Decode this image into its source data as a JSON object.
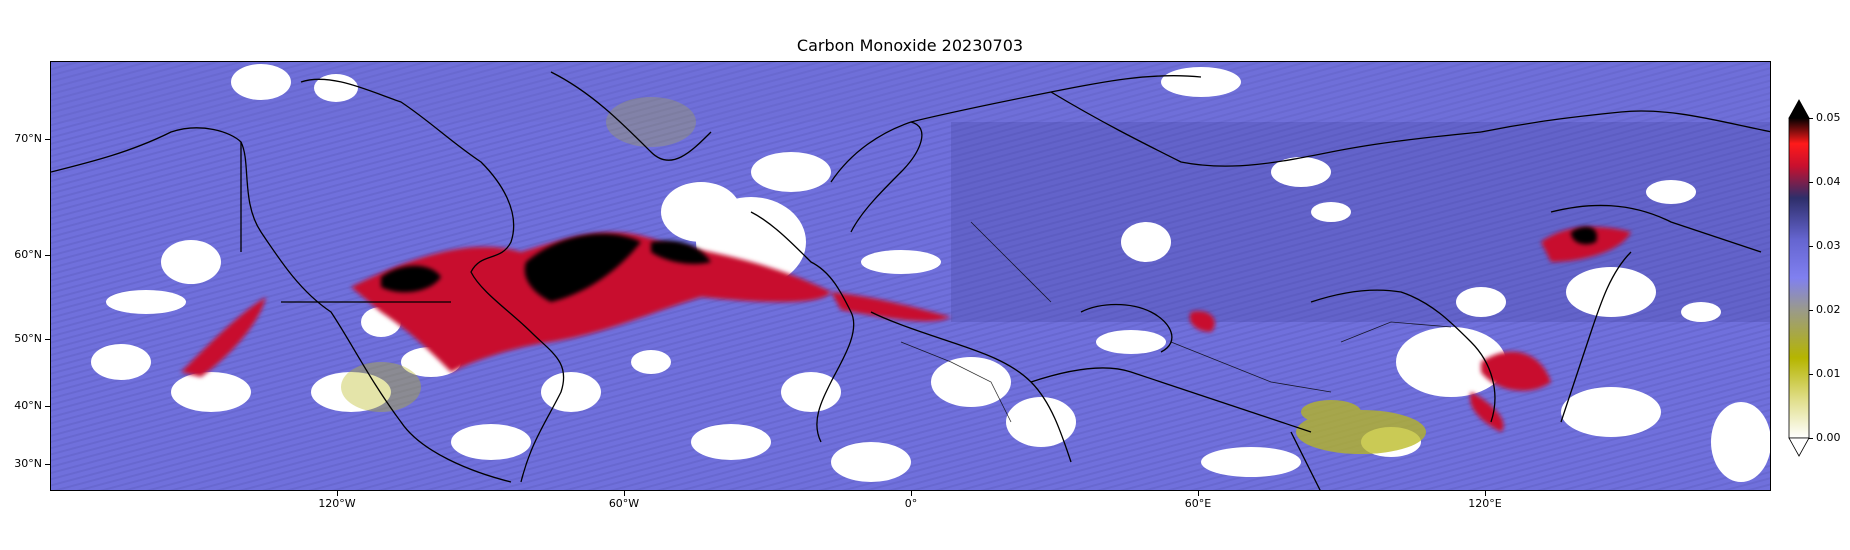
{
  "title": "Carbon Monoxide 20230703",
  "y_ticks": [
    "70°N",
    "60°N",
    "50°N",
    "40°N",
    "30°N"
  ],
  "x_ticks": [
    "120°W",
    "60°W",
    "0°",
    "60°E",
    "120°E"
  ],
  "colorbar": {
    "ticks": [
      "0.00",
      "0.01",
      "0.02",
      "0.03",
      "0.04",
      "0.05"
    ],
    "min": 0.0,
    "max": 0.05,
    "colors": [
      "#ffffff",
      "#e6e28a",
      "#b5b500",
      "#8d8d72",
      "#7f7fff",
      "#3b3b8c",
      "#c0102e",
      "#ff1a1a",
      "#000000"
    ],
    "extend": "max"
  },
  "colors": {
    "background_field": "#7878e6",
    "cloud_gap": "#ffffff",
    "plume_red": "#c8102e",
    "plume_black": "#000000",
    "plume_yellow": "#b5b520",
    "coastline": "#000000"
  }
}
